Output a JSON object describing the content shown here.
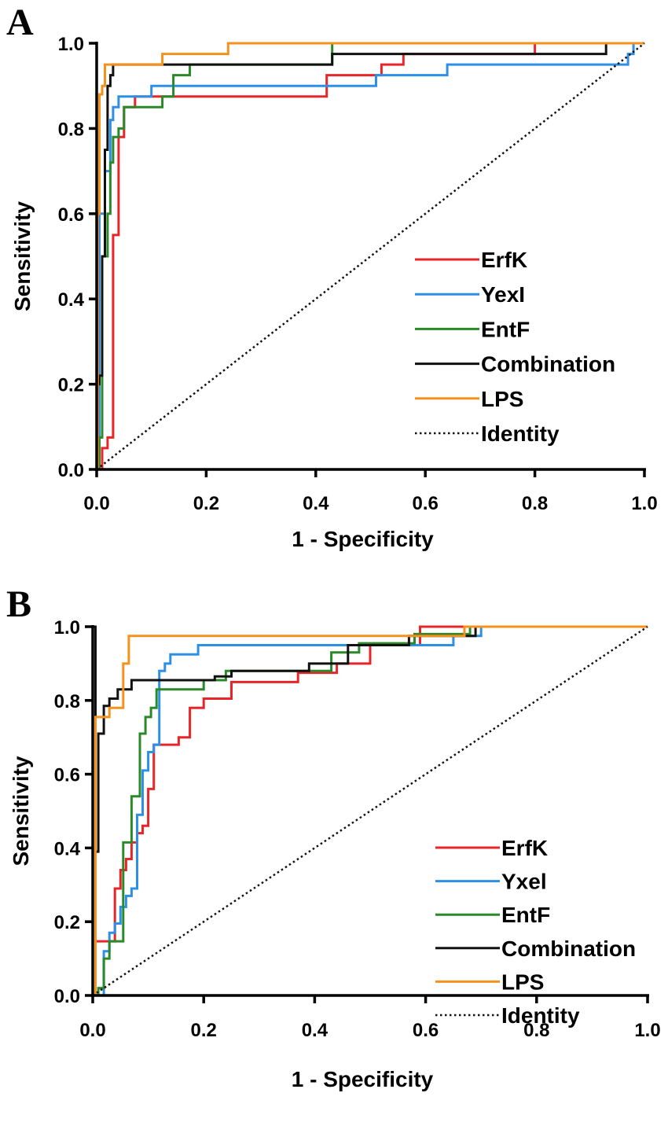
{
  "chart_data": [
    {
      "panel": "A",
      "type": "line",
      "xlabel": "1 - Specificity",
      "ylabel": "Sensitivity",
      "xlim": [
        0,
        1
      ],
      "ylim": [
        0,
        1
      ],
      "xticks": [
        "0.0",
        "0.2",
        "0.4",
        "0.6",
        "0.8",
        "1.0"
      ],
      "yticks": [
        "0.0",
        "0.2",
        "0.4",
        "0.6",
        "0.8",
        "1.0"
      ],
      "grid": false,
      "legend": "center-right",
      "series": [
        {
          "name": "ErfK",
          "color": "#e8262a",
          "style": "step",
          "x": [
            0,
            0.01,
            0.01,
            0.02,
            0.02,
            0.03,
            0.03,
            0.04,
            0.04,
            0.05,
            0.05,
            0.07,
            0.07,
            0.42,
            0.42,
            0.52,
            0.52,
            0.56,
            0.56,
            0.8,
            0.8,
            1.0
          ],
          "y": [
            0,
            0,
            0.05,
            0.05,
            0.075,
            0.075,
            0.55,
            0.55,
            0.78,
            0.78,
            0.85,
            0.85,
            0.875,
            0.875,
            0.925,
            0.925,
            0.95,
            0.95,
            0.975,
            0.975,
            1.0,
            1.0
          ]
        },
        {
          "name": "YexI",
          "color": "#2d8fe6",
          "style": "step",
          "x": [
            0,
            0.005,
            0.005,
            0.015,
            0.015,
            0.025,
            0.025,
            0.03,
            0.03,
            0.04,
            0.04,
            0.05,
            0.05,
            0.1,
            0.1,
            0.51,
            0.51,
            0.64,
            0.64,
            0.97,
            0.97,
            0.98,
            0.98,
            1.0
          ],
          "y": [
            0,
            0,
            0.6,
            0.6,
            0.7,
            0.7,
            0.82,
            0.82,
            0.85,
            0.85,
            0.875,
            0.875,
            0.875,
            0.875,
            0.9,
            0.9,
            0.925,
            0.925,
            0.95,
            0.95,
            0.975,
            0.975,
            1.0,
            1.0
          ]
        },
        {
          "name": "EntF",
          "color": "#2a8a2a",
          "style": "step",
          "x": [
            0,
            0.005,
            0.005,
            0.01,
            0.01,
            0.02,
            0.02,
            0.025,
            0.025,
            0.03,
            0.03,
            0.04,
            0.04,
            0.05,
            0.05,
            0.12,
            0.12,
            0.14,
            0.14,
            0.17,
            0.17,
            0.43,
            0.43,
            1.0
          ],
          "y": [
            0,
            0,
            0.075,
            0.075,
            0.5,
            0.5,
            0.6,
            0.6,
            0.72,
            0.72,
            0.78,
            0.78,
            0.8,
            0.8,
            0.85,
            0.85,
            0.875,
            0.875,
            0.925,
            0.925,
            0.95,
            0.95,
            1.0,
            1.0
          ]
        },
        {
          "name": "Combination",
          "color": "#111111",
          "style": "step",
          "x": [
            0,
            0.002,
            0.002,
            0.005,
            0.005,
            0.01,
            0.01,
            0.015,
            0.015,
            0.02,
            0.02,
            0.025,
            0.025,
            0.03,
            0.03,
            0.12,
            0.12,
            0.43,
            0.43,
            0.93,
            0.93,
            1.0
          ],
          "y": [
            0,
            0,
            0.2,
            0.2,
            0.22,
            0.22,
            0.5,
            0.5,
            0.75,
            0.75,
            0.9,
            0.9,
            0.925,
            0.925,
            0.95,
            0.95,
            0.95,
            0.95,
            0.975,
            0.975,
            1.0,
            1.0
          ]
        },
        {
          "name": "LPS",
          "color": "#f5921e",
          "style": "step",
          "x": [
            0,
            0.002,
            0.002,
            0.005,
            0.005,
            0.01,
            0.01,
            0.015,
            0.015,
            0.12,
            0.12,
            0.24,
            0.24,
            1.0
          ],
          "y": [
            0,
            0,
            0.6,
            0.6,
            0.88,
            0.88,
            0.9,
            0.9,
            0.95,
            0.95,
            0.975,
            0.975,
            1.0,
            1.0
          ]
        },
        {
          "name": "Identity",
          "color": "#111111",
          "style": "dotted",
          "x": [
            0,
            1
          ],
          "y": [
            0,
            1
          ]
        }
      ]
    },
    {
      "panel": "B",
      "type": "line",
      "xlabel": "1 - Specificity",
      "ylabel": "Sensitivity",
      "xlim": [
        0,
        1
      ],
      "ylim": [
        0,
        1
      ],
      "xticks": [
        "0.0",
        "0.2",
        "0.4",
        "0.6",
        "0.8",
        "1.0"
      ],
      "yticks": [
        "0.0",
        "0.2",
        "0.4",
        "0.6",
        "0.8",
        "1.0"
      ],
      "grid": false,
      "legend": "center-right",
      "series": [
        {
          "name": "ErfK",
          "color": "#e8262a",
          "style": "step",
          "x": [
            0,
            0.005,
            0.005,
            0.04,
            0.04,
            0.05,
            0.05,
            0.06,
            0.06,
            0.07,
            0.07,
            0.08,
            0.08,
            0.09,
            0.09,
            0.1,
            0.1,
            0.11,
            0.11,
            0.12,
            0.12,
            0.13,
            0.13,
            0.155,
            0.155,
            0.175,
            0.175,
            0.2,
            0.2,
            0.25,
            0.25,
            0.37,
            0.37,
            0.44,
            0.44,
            0.5,
            0.5,
            0.59,
            0.59,
            0.7,
            0.7,
            1.0
          ],
          "y": [
            0,
            0,
            0.147,
            0.147,
            0.29,
            0.29,
            0.34,
            0.34,
            0.37,
            0.37,
            0.415,
            0.415,
            0.44,
            0.44,
            0.46,
            0.46,
            0.56,
            0.56,
            0.68,
            0.68,
            0.68,
            0.68,
            0.68,
            0.68,
            0.7,
            0.7,
            0.78,
            0.78,
            0.805,
            0.805,
            0.85,
            0.85,
            0.875,
            0.875,
            0.9,
            0.9,
            0.95,
            0.95,
            1.0,
            1.0,
            1.0,
            1.0
          ]
        },
        {
          "name": "Yxel",
          "color": "#2d8fe6",
          "style": "step",
          "x": [
            0,
            0.02,
            0.02,
            0.03,
            0.03,
            0.04,
            0.04,
            0.05,
            0.05,
            0.06,
            0.06,
            0.07,
            0.07,
            0.08,
            0.08,
            0.09,
            0.09,
            0.1,
            0.1,
            0.11,
            0.11,
            0.12,
            0.12,
            0.13,
            0.13,
            0.14,
            0.14,
            0.19,
            0.19,
            0.65,
            0.65,
            0.7,
            0.7,
            0.89,
            0.89,
            1.0
          ],
          "y": [
            0,
            0,
            0.12,
            0.12,
            0.17,
            0.17,
            0.195,
            0.195,
            0.24,
            0.24,
            0.27,
            0.27,
            0.29,
            0.29,
            0.49,
            0.49,
            0.61,
            0.61,
            0.66,
            0.66,
            0.68,
            0.68,
            0.88,
            0.88,
            0.9,
            0.9,
            0.925,
            0.925,
            0.95,
            0.95,
            0.975,
            0.975,
            1.0,
            1.0,
            1.0,
            1.0
          ]
        },
        {
          "name": "EntF",
          "color": "#2a8a2a",
          "style": "step",
          "x": [
            0,
            0.01,
            0.01,
            0.02,
            0.02,
            0.03,
            0.03,
            0.055,
            0.055,
            0.07,
            0.07,
            0.085,
            0.085,
            0.095,
            0.095,
            0.105,
            0.105,
            0.115,
            0.115,
            0.2,
            0.2,
            0.24,
            0.24,
            0.43,
            0.43,
            0.48,
            0.48,
            0.58,
            0.58,
            0.68,
            0.68,
            1.0
          ],
          "y": [
            0,
            0,
            0.02,
            0.02,
            0.1,
            0.1,
            0.147,
            0.147,
            0.415,
            0.415,
            0.54,
            0.54,
            0.71,
            0.71,
            0.755,
            0.755,
            0.78,
            0.78,
            0.83,
            0.83,
            0.855,
            0.855,
            0.88,
            0.88,
            0.93,
            0.93,
            0.955,
            0.955,
            0.98,
            0.98,
            1.0,
            1.0
          ]
        },
        {
          "name": "Combination",
          "color": "#111111",
          "style": "step",
          "x": [
            0,
            0.005,
            0.005,
            0.01,
            0.01,
            0.02,
            0.02,
            0.03,
            0.03,
            0.045,
            0.045,
            0.07,
            0.07,
            0.22,
            0.22,
            0.25,
            0.25,
            0.39,
            0.39,
            0.46,
            0.46,
            0.57,
            0.57,
            0.69,
            0.69,
            1.0
          ],
          "y": [
            1.0,
            1.0,
            0.39,
            0.39,
            0.71,
            0.71,
            0.785,
            0.785,
            0.805,
            0.805,
            0.83,
            0.83,
            0.855,
            0.855,
            0.865,
            0.865,
            0.88,
            0.88,
            0.9,
            0.9,
            0.95,
            0.95,
            0.975,
            0.975,
            1.0,
            1.0
          ]
        },
        {
          "name": "LPS",
          "color": "#f5921e",
          "style": "step",
          "x": [
            0,
            0.005,
            0.005,
            0.03,
            0.03,
            0.045,
            0.045,
            0.055,
            0.055,
            0.065,
            0.065,
            0.67,
            0.67,
            1.0
          ],
          "y": [
            0,
            0,
            0.755,
            0.755,
            0.78,
            0.78,
            0.78,
            0.78,
            0.9,
            0.9,
            0.975,
            0.975,
            1.0,
            1.0
          ]
        },
        {
          "name": "Identity",
          "color": "#111111",
          "style": "dotted",
          "x": [
            0,
            1
          ],
          "y": [
            0,
            1
          ]
        }
      ]
    }
  ]
}
